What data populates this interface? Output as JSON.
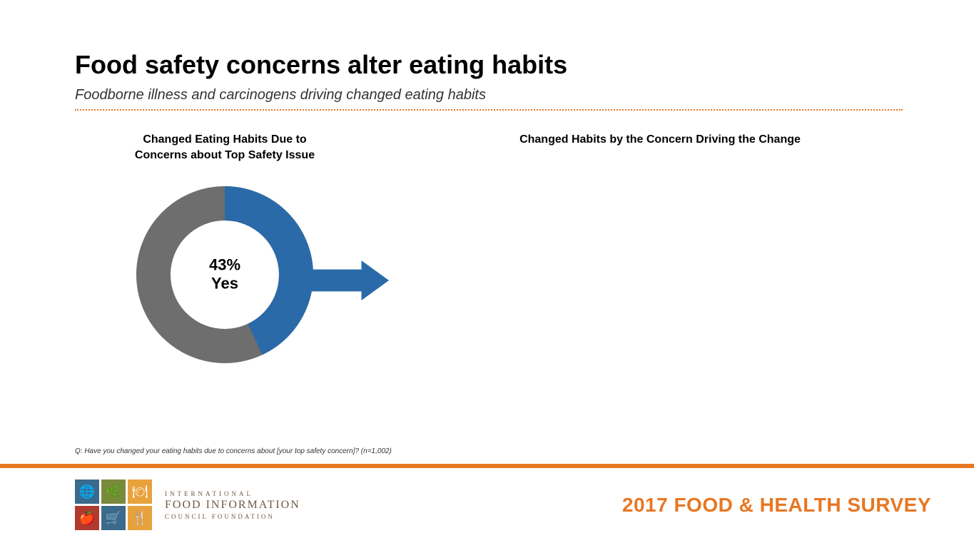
{
  "header": {
    "title": "Food safety concerns alter eating habits",
    "subtitle": "Foodborne illness and carcinogens driving changed eating habits",
    "divider_color": "#e87722"
  },
  "chart_left": {
    "title_line1": "Changed Eating Habits Due to",
    "title_line2": "Concerns about Top Safety Issue",
    "donut": {
      "type": "donut",
      "yes_pct": 43,
      "no_pct": 57,
      "yes_color": "#2a6aa8",
      "no_color": "#6e6e6e",
      "background": "#ffffff",
      "stroke_width": 48,
      "radius": 100,
      "center_label_pct": "43%",
      "center_label_text": "Yes",
      "center_fontsize": 22,
      "start_angle_deg": -90
    },
    "arrow": {
      "color": "#2a6aa8",
      "width": 110,
      "height": 56
    }
  },
  "chart_right": {
    "title": "Changed Habits by the Concern Driving the Change"
  },
  "question_note": "Q: Have you changed your eating habits due to concerns about [your top safety concern]? (n=1,002)",
  "footer": {
    "bar_color": "#e87722",
    "logo": {
      "cells": [
        {
          "bg": "#3a6a8c",
          "glyph": "🌐"
        },
        {
          "bg": "#7a8a3c",
          "glyph": "🌿"
        },
        {
          "bg": "#e8a23c",
          "glyph": "🍽"
        },
        {
          "bg": "#b03a2e",
          "glyph": "🍎"
        },
        {
          "bg": "#3a6a8c",
          "glyph": "🛒"
        },
        {
          "bg": "#e8a23c",
          "glyph": "🍴"
        }
      ],
      "line1": "INTERNATIONAL",
      "line2": "FOOD INFORMATION",
      "line3": "COUNCIL FOUNDATION",
      "text_color": "#6b5a45"
    },
    "survey_title": "2017 FOOD & HEALTH SURVEY",
    "survey_title_color": "#e87722"
  }
}
